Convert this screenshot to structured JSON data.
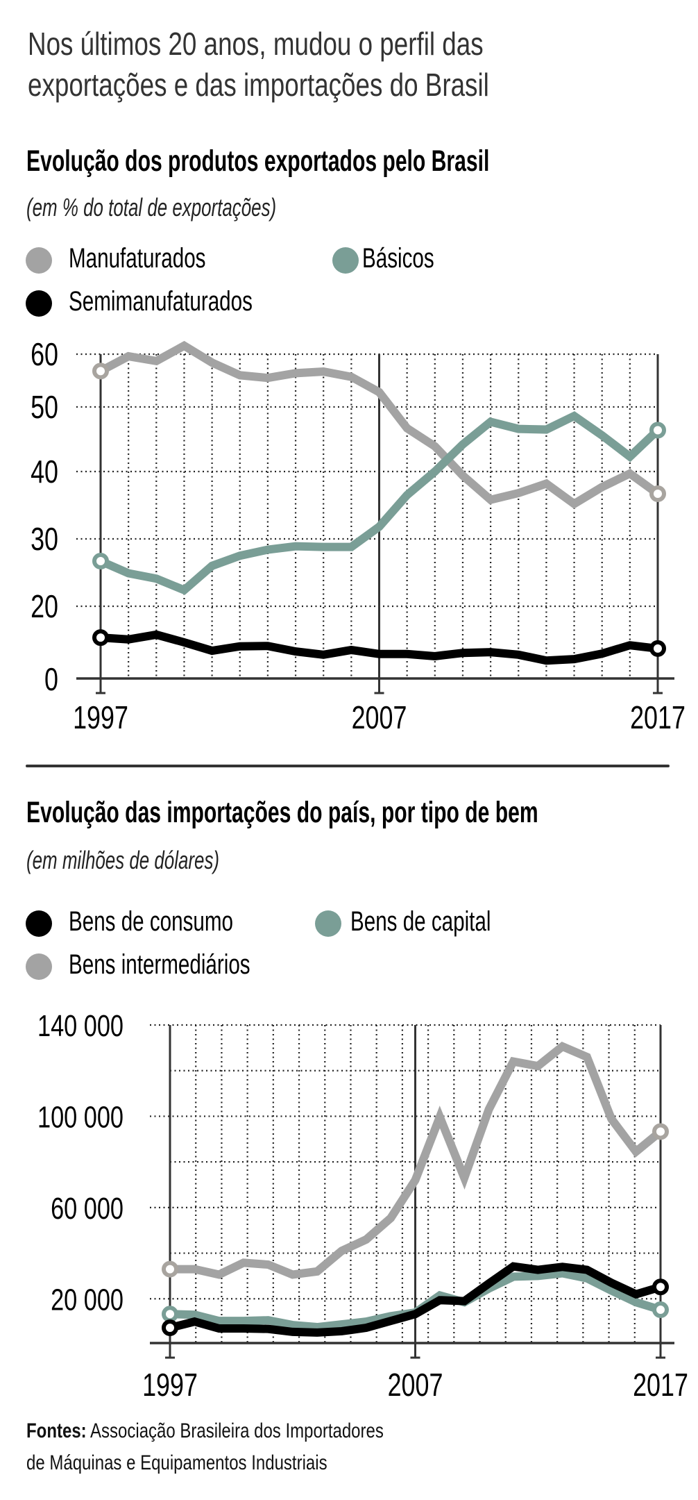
{
  "header": {
    "title_line1": "Nos últimos 20 anos, mudou o perfil das",
    "title_line2": "exportações e das importações do Brasil"
  },
  "colors": {
    "manufacturados": "#a3a3a3",
    "basicos": "#7a9e96",
    "semimanufaturados": "#000000",
    "bens_consumo": "#000000",
    "bens_capital": "#7a9e96",
    "bens_intermediarios": "#a3a3a3",
    "marker_ring_gray": "#a8a49f",
    "axis": "#333333"
  },
  "exports": {
    "title": "Evolução dos produtos exportados pelo Brasil",
    "unit": "(em % do total de exportações)",
    "legend": [
      {
        "label": "Manufaturados",
        "color": "#a3a3a3"
      },
      {
        "label": "Básicos",
        "color": "#7a9e96"
      },
      {
        "label": "Semimanufaturados",
        "color": "#000000"
      }
    ]
  },
  "imports": {
    "title": "Evolução das importações do país, por tipo de bem",
    "unit": "(em milhões de dólares)",
    "legend": [
      {
        "label": "Bens de consumo",
        "color": "#000000"
      },
      {
        "label": "Bens de capital",
        "color": "#7a9e96"
      },
      {
        "label": "Bens intermediários",
        "color": "#a3a3a3"
      }
    ]
  },
  "footer": {
    "label": "Fontes:",
    "line1": "Associação Brasileira dos Importadores",
    "line2": "de Máquinas e Equipamentos Industriais"
  },
  "chart_data": [
    {
      "type": "line",
      "title": "Evolução dos produtos exportados pelo Brasil",
      "subtitle": "(em % do total de exportações)",
      "xlabel": "",
      "ylabel": "",
      "x": [
        1997,
        1998,
        1999,
        2000,
        2001,
        2002,
        2003,
        2004,
        2005,
        2006,
        2007,
        2008,
        2009,
        2010,
        2011,
        2012,
        2013,
        2014,
        2015,
        2016,
        2017
      ],
      "x_tick_labels": [
        "1997",
        "2007",
        "2017"
      ],
      "y_ticks": [
        0,
        20,
        30,
        40,
        50,
        60
      ],
      "y_tick_labels": [
        "0",
        "20",
        "30",
        "40",
        "50",
        "60"
      ],
      "ylim": [
        0,
        60
      ],
      "grid": true,
      "legend": "top-left",
      "series": [
        {
          "name": "Manufaturados",
          "color": "#a3a3a3",
          "values": [
            56.8,
            59.6,
            58.7,
            61.6,
            58.4,
            56.0,
            55.5,
            56.4,
            56.7,
            55.7,
            52.8,
            46.7,
            43.9,
            39.4,
            35.8,
            36.8,
            38.2,
            35.2,
            37.7,
            39.7,
            36.7
          ]
        },
        {
          "name": "Básicos",
          "color": "#7a9e96",
          "values": [
            26.7,
            24.9,
            24.1,
            22.4,
            26.0,
            27.5,
            28.4,
            28.9,
            28.8,
            28.8,
            31.8,
            36.5,
            40.0,
            44.2,
            47.7,
            46.6,
            46.5,
            48.6,
            45.6,
            42.3,
            46.4
          ]
        },
        {
          "name": "Semimanufaturados",
          "color": "#000000",
          "values": [
            11.4,
            10.9,
            12.2,
            10.1,
            7.8,
            9.0,
            9.1,
            7.6,
            6.7,
            8.0,
            6.9,
            6.9,
            6.3,
            7.2,
            7.4,
            6.7,
            5.1,
            5.5,
            7.0,
            9.3,
            8.4
          ]
        }
      ]
    },
    {
      "type": "line",
      "title": "Evolução das importações do país, por tipo de bem",
      "subtitle": "(em milhões de dólares)",
      "xlabel": "",
      "ylabel": "",
      "x": [
        1997,
        1998,
        1999,
        2000,
        2001,
        2002,
        2003,
        2004,
        2005,
        2006,
        2007,
        2008,
        2009,
        2010,
        2011,
        2012,
        2013,
        2014,
        2015,
        2016,
        2017
      ],
      "x_tick_labels": [
        "1997",
        "2007",
        "2017"
      ],
      "y_ticks": [
        20000,
        40000,
        60000,
        80000,
        100000,
        120000,
        140000
      ],
      "y_tick_labels": [
        "20 000",
        "",
        "60 000",
        "",
        "100 000",
        "",
        "140 000"
      ],
      "ylim": [
        0,
        140000
      ],
      "grid": true,
      "legend": "top-left",
      "series": [
        {
          "name": "Bens intermediários",
          "color": "#a3a3a3",
          "values": [
            33000,
            33000,
            30600,
            35800,
            35000,
            30600,
            32000,
            41000,
            46000,
            55400,
            72000,
            99700,
            73000,
            103000,
            124000,
            122000,
            130600,
            126000,
            98800,
            84500,
            93300
          ]
        },
        {
          "name": "Bens de capital",
          "color": "#7a9e96",
          "values": [
            13300,
            13000,
            10300,
            10300,
            10600,
            8500,
            7600,
            8800,
            10000,
            12400,
            14000,
            21500,
            18500,
            24500,
            29700,
            30000,
            31200,
            29000,
            23600,
            18500,
            15200
          ]
        },
        {
          "name": "Bens de consumo",
          "color": "#000000",
          "values": [
            7300,
            10000,
            7000,
            7000,
            6800,
            5500,
            5200,
            5800,
            7300,
            10300,
            13300,
            19400,
            19000,
            26700,
            34200,
            32700,
            34000,
            32700,
            27000,
            22000,
            25200
          ]
        }
      ]
    }
  ]
}
